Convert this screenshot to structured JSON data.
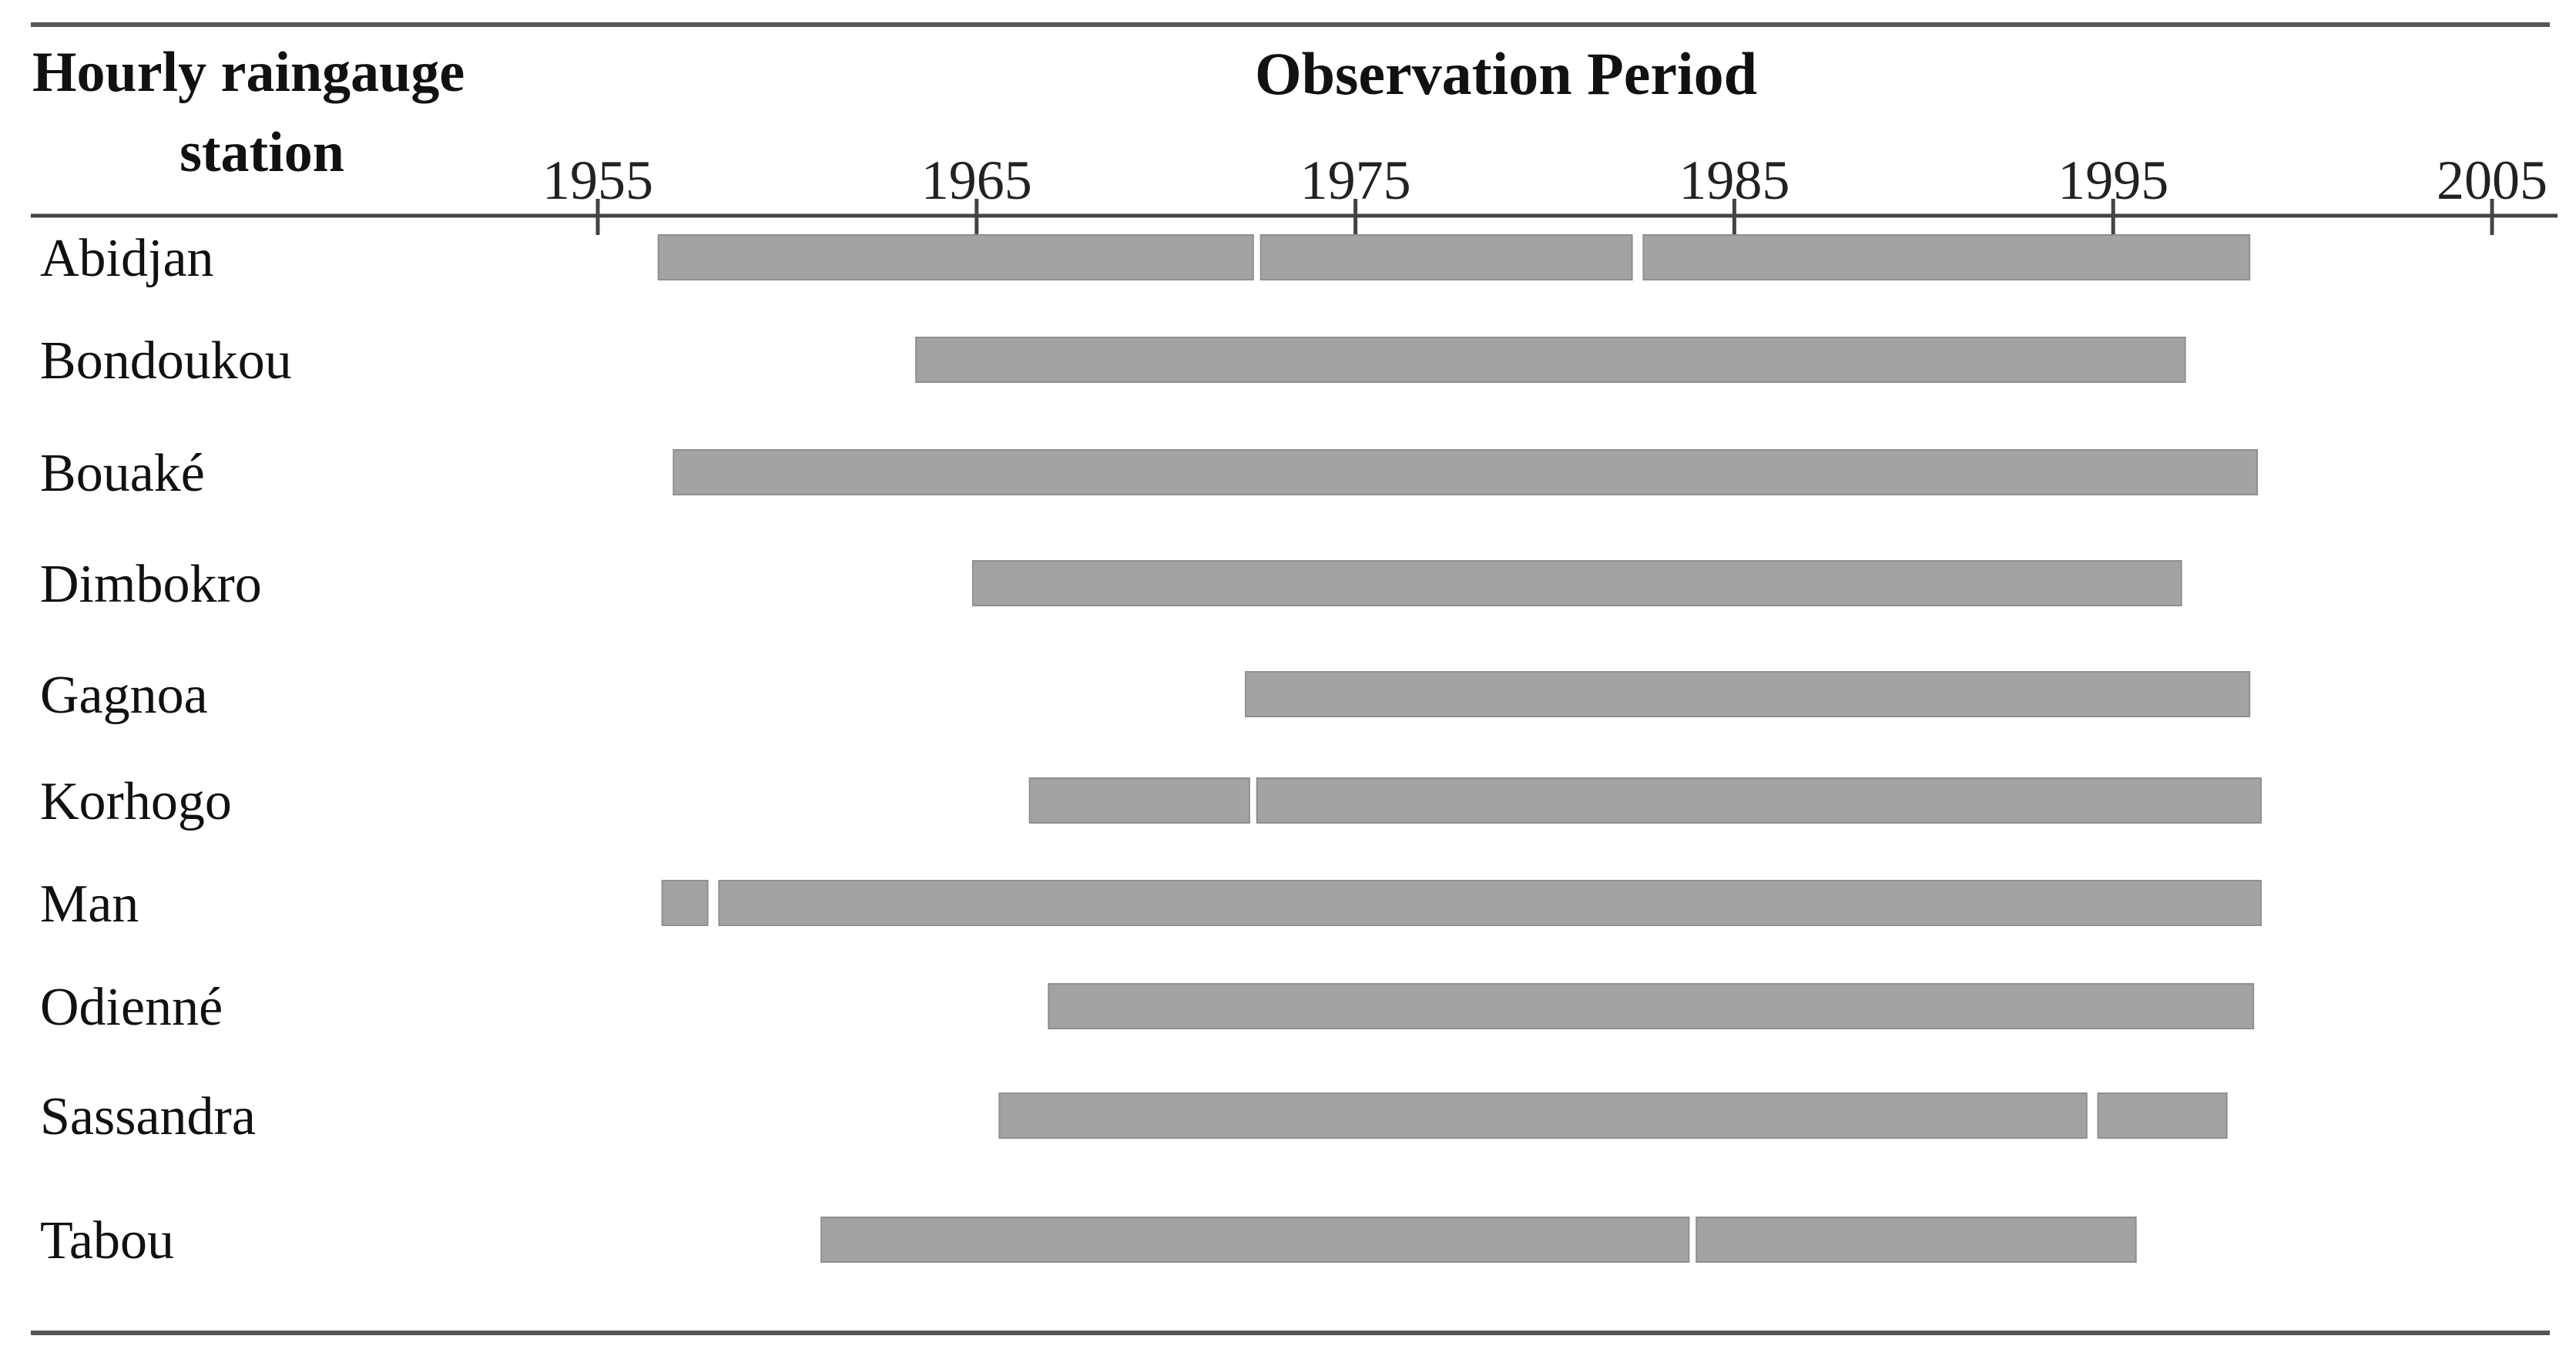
{
  "chart_data": {
    "type": "gantt",
    "header_left_line1": "Hourly raingauge",
    "header_left_line2": "station",
    "header_title": "Observation Period",
    "x_ticks": [
      1955,
      1965,
      1975,
      1985,
      1995,
      2005
    ],
    "x_range": [
      1951,
      2006
    ],
    "bar_color": "#a3a3a3",
    "rule_color": "#555555",
    "stations": [
      {
        "name": "Abidjan",
        "segments": [
          [
            1956.6,
            1972.3
          ],
          [
            1972.5,
            1982.3
          ],
          [
            1982.6,
            1998.6
          ]
        ]
      },
      {
        "name": "Bondoukou",
        "segments": [
          [
            1963.4,
            1996.9
          ]
        ]
      },
      {
        "name": "Bouaké",
        "segments": [
          [
            1957.0,
            1998.8
          ]
        ]
      },
      {
        "name": "Dimbokro",
        "segments": [
          [
            1964.9,
            1996.8
          ]
        ]
      },
      {
        "name": "Gagnoa",
        "segments": [
          [
            1972.1,
            1998.6
          ]
        ]
      },
      {
        "name": "Korhogo",
        "segments": [
          [
            1966.4,
            1972.2
          ],
          [
            1972.4,
            1998.9
          ]
        ]
      },
      {
        "name": "Man",
        "segments": [
          [
            1956.7,
            1957.9
          ],
          [
            1958.2,
            1998.9
          ]
        ]
      },
      {
        "name": "Odienné",
        "segments": [
          [
            1966.9,
            1998.7
          ]
        ]
      },
      {
        "name": "Sassandra",
        "segments": [
          [
            1965.6,
            1994.3
          ],
          [
            1994.6,
            1998.0
          ]
        ]
      },
      {
        "name": "Tabou",
        "segments": [
          [
            1960.9,
            1983.8
          ],
          [
            1984.0,
            1995.6
          ]
        ]
      }
    ]
  }
}
